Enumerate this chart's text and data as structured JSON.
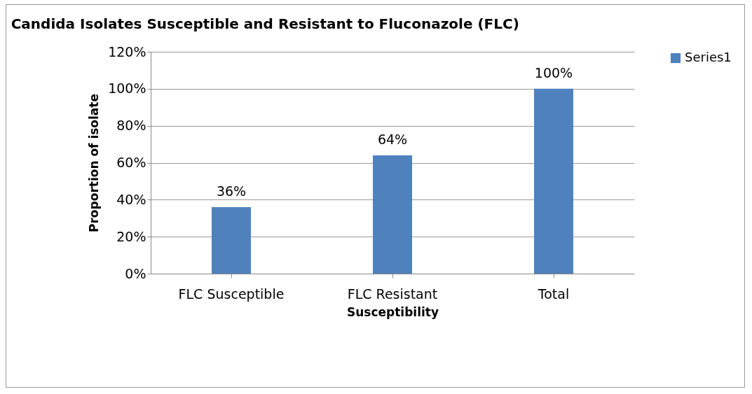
{
  "chart_data": {
    "type": "bar",
    "title": "Candida Isolates Susceptible and Resistant to Fluconazole (FLC)",
    "xlabel": "Susceptibility",
    "ylabel": "Proportion of isolate",
    "categories": [
      "FLC Susceptible",
      "FLC Resistant",
      "Total"
    ],
    "series": [
      {
        "name": "Series1",
        "color": "#4f81bd",
        "values": [
          36,
          64,
          100
        ],
        "value_labels": [
          "36%",
          "64%",
          "100%"
        ]
      }
    ],
    "ylim": [
      0,
      120
    ],
    "yticks": [
      {
        "value": 0,
        "label": "0%"
      },
      {
        "value": 20,
        "label": "20%"
      },
      {
        "value": 40,
        "label": "40%"
      },
      {
        "value": 60,
        "label": "60%"
      },
      {
        "value": 80,
        "label": "80%"
      },
      {
        "value": 100,
        "label": "100%"
      },
      {
        "value": 120,
        "label": "120%"
      }
    ],
    "grid": "y",
    "legend": "right"
  }
}
